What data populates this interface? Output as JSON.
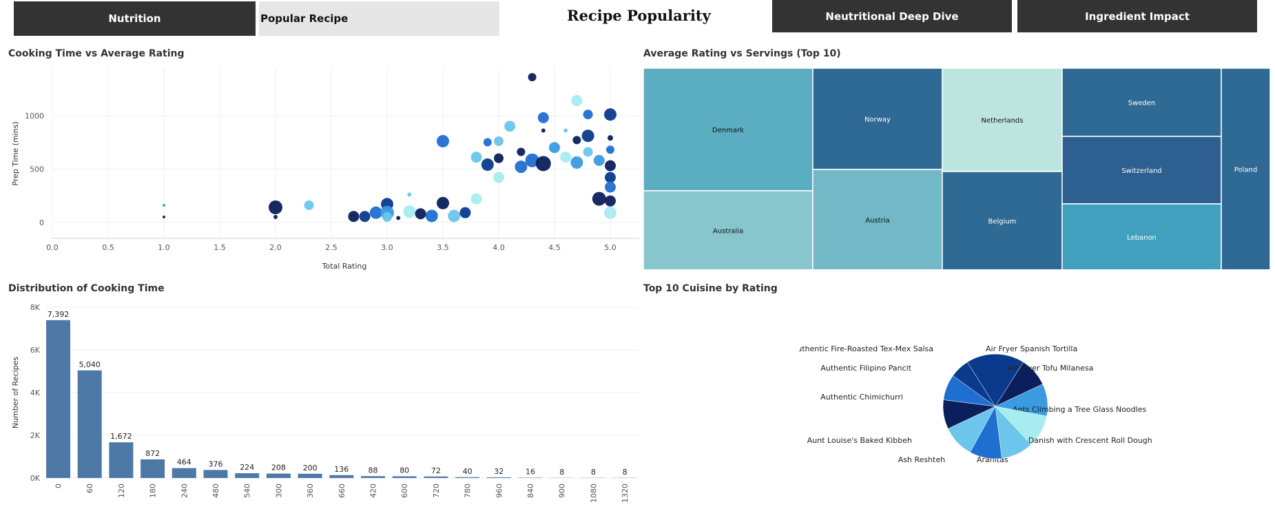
{
  "nav": {
    "nutrition": "Nutrition",
    "popular": "Popular Recipe",
    "deep_dive": "Neutritional Deep Dive",
    "impact": "Ingredient Impact"
  },
  "dashboard_title": "Recipe Popularity",
  "colors": {
    "nav_dark": "#333333",
    "nav_light": "#e6e6e6",
    "bar": "#4e79a7",
    "scatter_palette": [
      "#0b1f5c",
      "#0a3a8c",
      "#1f6fd0",
      "#3a9be0",
      "#6cc6ec",
      "#a7ecef"
    ]
  },
  "chart_data": [
    {
      "type": "scatter",
      "title": "Cooking Time vs Average Rating",
      "xlabel": "Total Rating",
      "ylabel": "Prep Time (mins)",
      "xlim": [
        0,
        5.3
      ],
      "ylim": [
        -150,
        1450
      ],
      "x_ticks": [
        "0.0",
        "0.5",
        "1.0",
        "1.5",
        "2.0",
        "2.5",
        "3.0",
        "3.5",
        "4.0",
        "4.5",
        "5.0"
      ],
      "y_ticks": [
        "0",
        "500",
        "1000"
      ],
      "grid": true,
      "points": [
        {
          "x": 1.0,
          "y": 160,
          "s": 2,
          "c": 3
        },
        {
          "x": 1.0,
          "y": 50,
          "s": 2,
          "c": 0
        },
        {
          "x": 2.0,
          "y": 140,
          "s": 10,
          "c": 0
        },
        {
          "x": 2.0,
          "y": 50,
          "s": 3,
          "c": 0
        },
        {
          "x": 2.3,
          "y": 160,
          "s": 7,
          "c": 4
        },
        {
          "x": 2.7,
          "y": 55,
          "s": 8,
          "c": 0
        },
        {
          "x": 2.8,
          "y": 55,
          "s": 8,
          "c": 1
        },
        {
          "x": 2.9,
          "y": 90,
          "s": 9,
          "c": 2
        },
        {
          "x": 3.0,
          "y": 170,
          "s": 9,
          "c": 1
        },
        {
          "x": 3.0,
          "y": 90,
          "s": 10,
          "c": 3
        },
        {
          "x": 3.0,
          "y": 50,
          "s": 7,
          "c": 4
        },
        {
          "x": 3.1,
          "y": 40,
          "s": 3,
          "c": 0
        },
        {
          "x": 3.2,
          "y": 260,
          "s": 3,
          "c": 4
        },
        {
          "x": 3.2,
          "y": 100,
          "s": 9,
          "c": 5
        },
        {
          "x": 3.3,
          "y": 80,
          "s": 8,
          "c": 0
        },
        {
          "x": 3.4,
          "y": 60,
          "s": 9,
          "c": 2
        },
        {
          "x": 3.5,
          "y": 760,
          "s": 9,
          "c": 2
        },
        {
          "x": 3.5,
          "y": 180,
          "s": 9,
          "c": 0
        },
        {
          "x": 3.6,
          "y": 60,
          "s": 9,
          "c": 4
        },
        {
          "x": 3.7,
          "y": 90,
          "s": 8,
          "c": 1
        },
        {
          "x": 3.8,
          "y": 610,
          "s": 8,
          "c": 4
        },
        {
          "x": 3.8,
          "y": 220,
          "s": 8,
          "c": 5
        },
        {
          "x": 3.9,
          "y": 540,
          "s": 9,
          "c": 1
        },
        {
          "x": 3.9,
          "y": 750,
          "s": 6,
          "c": 2
        },
        {
          "x": 4.0,
          "y": 600,
          "s": 7,
          "c": 0
        },
        {
          "x": 4.0,
          "y": 760,
          "s": 7,
          "c": 4
        },
        {
          "x": 4.0,
          "y": 420,
          "s": 8,
          "c": 5
        },
        {
          "x": 4.1,
          "y": 900,
          "s": 8,
          "c": 4
        },
        {
          "x": 4.2,
          "y": 660,
          "s": 6,
          "c": 0
        },
        {
          "x": 4.2,
          "y": 520,
          "s": 9,
          "c": 2
        },
        {
          "x": 4.3,
          "y": 1360,
          "s": 6,
          "c": 0
        },
        {
          "x": 4.3,
          "y": 580,
          "s": 10,
          "c": 2
        },
        {
          "x": 4.4,
          "y": 980,
          "s": 8,
          "c": 2
        },
        {
          "x": 4.4,
          "y": 860,
          "s": 3,
          "c": 0
        },
        {
          "x": 4.4,
          "y": 550,
          "s": 11,
          "c": 0
        },
        {
          "x": 4.5,
          "y": 700,
          "s": 8,
          "c": 3
        },
        {
          "x": 4.6,
          "y": 860,
          "s": 3,
          "c": 4
        },
        {
          "x": 4.6,
          "y": 610,
          "s": 8,
          "c": 5
        },
        {
          "x": 4.7,
          "y": 1140,
          "s": 8,
          "c": 5
        },
        {
          "x": 4.7,
          "y": 770,
          "s": 6,
          "c": 0
        },
        {
          "x": 4.7,
          "y": 560,
          "s": 9,
          "c": 3
        },
        {
          "x": 4.8,
          "y": 1010,
          "s": 7,
          "c": 2
        },
        {
          "x": 4.8,
          "y": 810,
          "s": 9,
          "c": 1
        },
        {
          "x": 4.8,
          "y": 660,
          "s": 7,
          "c": 4
        },
        {
          "x": 4.9,
          "y": 580,
          "s": 8,
          "c": 3
        },
        {
          "x": 4.9,
          "y": 220,
          "s": 10,
          "c": 0
        },
        {
          "x": 5.0,
          "y": 1010,
          "s": 9,
          "c": 1
        },
        {
          "x": 5.0,
          "y": 790,
          "s": 4,
          "c": 0
        },
        {
          "x": 5.0,
          "y": 680,
          "s": 6,
          "c": 2
        },
        {
          "x": 5.0,
          "y": 530,
          "s": 8,
          "c": 0
        },
        {
          "x": 5.0,
          "y": 420,
          "s": 8,
          "c": 1
        },
        {
          "x": 5.0,
          "y": 330,
          "s": 8,
          "c": 2
        },
        {
          "x": 5.0,
          "y": 200,
          "s": 8,
          "c": 0
        },
        {
          "x": 5.0,
          "y": 90,
          "s": 9,
          "c": 5
        }
      ]
    },
    {
      "type": "treemap",
      "title": "Average Rating vs Servings (Top 10)",
      "items": [
        {
          "label": "Denmark",
          "color": "#5badc2"
        },
        {
          "label": "Australia",
          "color": "#87c6cd"
        },
        {
          "label": "Norway",
          "color": "#2f6a95"
        },
        {
          "label": "Austria",
          "color": "#72b8c6"
        },
        {
          "label": "Netherlands",
          "color": "#bde5df"
        },
        {
          "label": "Belgium",
          "color": "#2f6a95"
        },
        {
          "label": "Sweden",
          "color": "#2f6a95"
        },
        {
          "label": "Switzerland",
          "color": "#2d5f90"
        },
        {
          "label": "Lebanon",
          "color": "#42a0bf"
        },
        {
          "label": "Poland",
          "color": "#2f6a95"
        }
      ]
    },
    {
      "type": "bar",
      "title": "Distribution of Cooking Time",
      "xlabel": "",
      "ylabel": "Number of Recipes",
      "categories": [
        "0",
        "60",
        "120",
        "180",
        "240",
        "480",
        "540",
        "300",
        "360",
        "660",
        "420",
        "600",
        "720",
        "780",
        "960",
        "840",
        "900",
        "1080",
        "1320"
      ],
      "values": [
        7392,
        5040,
        1672,
        872,
        464,
        376,
        224,
        208,
        200,
        136,
        88,
        80,
        72,
        40,
        32,
        16,
        8,
        8,
        8
      ],
      "value_labels": [
        "7,392",
        "5,040",
        "1,672",
        "872",
        "464",
        "376",
        "224",
        "208",
        "200",
        "136",
        "88",
        "80",
        "72",
        "40",
        "32",
        "16",
        "8",
        "8",
        "8"
      ],
      "ylim": [
        0,
        8000
      ],
      "y_ticks": [
        "0K",
        "2K",
        "4K",
        "6K",
        "8K"
      ],
      "grid": true
    },
    {
      "type": "pie",
      "title": "Top 10 Cuisine by Rating",
      "slices": [
        {
          "label": "Air Fryer Spanish Tortilla",
          "value": 18,
          "color": "#0a3a8c"
        },
        {
          "label": "Air Fryer Tofu Milanesa",
          "value": 9,
          "color": "#0b1f5c"
        },
        {
          "label": "Ants Climbing a Tree Glass Noodles",
          "value": 10,
          "color": "#3a9be0"
        },
        {
          "label": "Apple Danish with Crescent Roll Dough",
          "value": 10,
          "color": "#a7ecef"
        },
        {
          "label": "Aranitas",
          "value": 10,
          "color": "#6cc6ec"
        },
        {
          "label": "Ash Reshteh",
          "value": 10,
          "color": "#1f6fd0"
        },
        {
          "label": "Aunt Louise's Baked Kibbeh",
          "value": 10,
          "color": "#6cc6ec"
        },
        {
          "label": "Authentic Chimichurri",
          "value": 9,
          "color": "#0b1f5c"
        },
        {
          "label": "Authentic Filipino Pancit",
          "value": 8,
          "color": "#1f6fd0"
        },
        {
          "label": "Authentic Fire-Roasted Tex-Mex Salsa",
          "value": 6,
          "color": "#0a3a8c"
        }
      ]
    }
  ]
}
